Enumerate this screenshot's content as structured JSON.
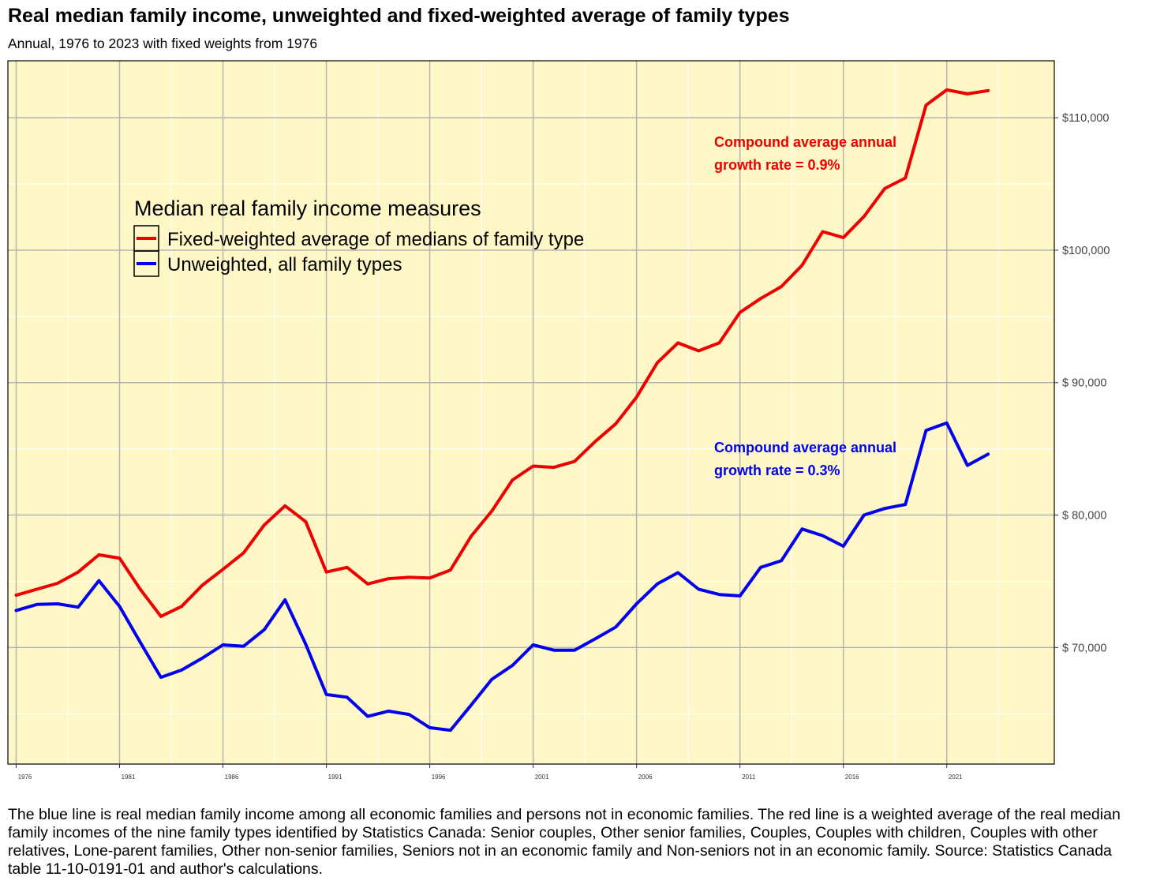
{
  "title": "Real median family income, unweighted and fixed-weighted average of family types",
  "subtitle": "Annual, 1976 to 2023 with fixed weights from 1976",
  "note": "The blue line is real median family income among all economic families and persons not in economic families. The red line is a weighted average of the real median family incomes of the nine family types identified by Statistics Canada: Senior couples, Other senior families, Couples, Couples with children, Couples with other relatives, Lone-parent families, Other non-senior families, Seniors not in an economic family and Non-seniors not in an economic family. Source: Statistics Canada table 11-10-0191-01 and author's calculations.",
  "colors": {
    "background": "#FFF8C6",
    "grid_major": "#B4B4B4",
    "grid_minor": "#FFFFFF",
    "red": "#EE0000",
    "blue": "#0000EE"
  },
  "chart_data": {
    "type": "line",
    "x": [
      1976,
      1977,
      1978,
      1979,
      1980,
      1981,
      1982,
      1983,
      1984,
      1985,
      1986,
      1987,
      1988,
      1989,
      1990,
      1991,
      1992,
      1993,
      1994,
      1995,
      1996,
      1997,
      1998,
      1999,
      2000,
      2001,
      2002,
      2003,
      2004,
      2005,
      2006,
      2007,
      2008,
      2009,
      2010,
      2011,
      2012,
      2013,
      2014,
      2015,
      2016,
      2017,
      2018,
      2019,
      2020,
      2021,
      2022,
      2023
    ],
    "xticks": [
      1976,
      1981,
      1986,
      1991,
      1996,
      2001,
      2006,
      2011,
      2016,
      2021
    ],
    "xlim": [
      1975.6,
      2026.2
    ],
    "ylim": [
      61200,
      114300
    ],
    "yticks": [
      70000,
      80000,
      90000,
      100000,
      110000
    ],
    "ytick_labels": [
      "$ 70,000",
      "$ 80,000",
      "$ 90,000",
      "$100,000",
      "$110,000"
    ],
    "y_axis_position": "right",
    "grid": true,
    "legend_title": "Median real family income measures",
    "legend_position": "upper-left",
    "series": [
      {
        "name": "Fixed-weighted average of medians of family type",
        "color": "#EE0000",
        "values": [
          73950,
          74400,
          74850,
          75700,
          77000,
          76750,
          74400,
          72350,
          73100,
          74700,
          75900,
          77150,
          79250,
          80700,
          79500,
          75700,
          76050,
          74800,
          75200,
          75300,
          75250,
          75850,
          78400,
          80300,
          82650,
          83700,
          83600,
          84050,
          85550,
          86900,
          88900,
          91500,
          93000,
          92400,
          93000,
          95300,
          96350,
          97250,
          98850,
          101400,
          100950,
          102550,
          104650,
          105450,
          110950,
          112100,
          111800,
          112050
        ]
      },
      {
        "name": "Unweighted, all family types",
        "color": "#0000EE",
        "values": [
          72800,
          73250,
          73300,
          73050,
          75050,
          73100,
          70400,
          67750,
          68300,
          69200,
          70200,
          70100,
          71350,
          73600,
          70250,
          66450,
          66250,
          64800,
          65200,
          64950,
          63950,
          63750,
          65650,
          67600,
          68650,
          70200,
          69800,
          69800,
          70650,
          71550,
          73300,
          74800,
          75650,
          74400,
          74000,
          73900,
          76050,
          76550,
          78950,
          78450,
          77650,
          80000,
          80500,
          80800,
          86400,
          86950,
          83750,
          84600
        ]
      }
    ],
    "annotations": [
      {
        "text": [
          "Compound average annual",
          "growth rate = 0.9%"
        ],
        "color": "#EE0000"
      },
      {
        "text": [
          "Compound average annual",
          "growth rate = 0.3%"
        ],
        "color": "#0000EE"
      }
    ]
  }
}
